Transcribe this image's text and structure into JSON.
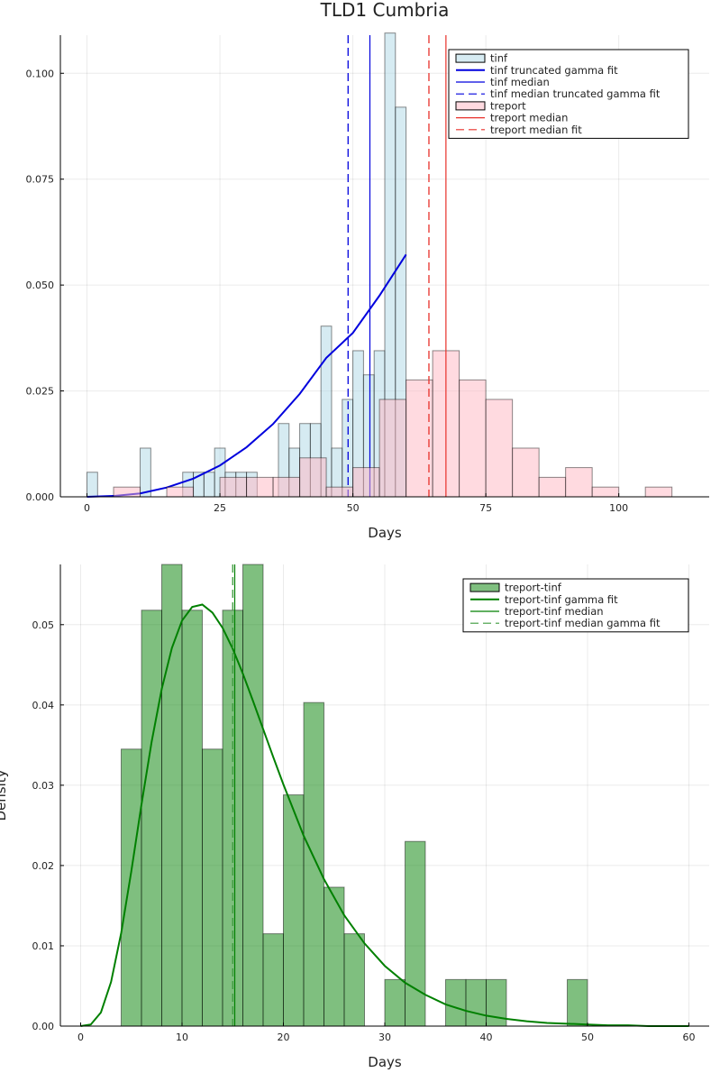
{
  "title": "TLD1 Cumbria",
  "chart_data": [
    {
      "type": "histogram",
      "xlabel": "Days",
      "ylabel": "",
      "xlim": [
        -5,
        117
      ],
      "ylim": [
        0,
        0.109
      ],
      "xticks": [
        0,
        25,
        50,
        75,
        100
      ],
      "xtick_labels": [
        "0",
        "25",
        "50",
        "75",
        "100"
      ],
      "yticks": [
        0,
        0.025,
        0.05,
        0.075,
        0.1
      ],
      "ytick_labels": [
        "0.000",
        "0.025",
        "0.050",
        "0.075",
        "0.100"
      ],
      "grid": true,
      "legend_position": "top-right",
      "series": [
        {
          "name": "tinf",
          "kind": "histogram",
          "color": "#add8e6",
          "bin_width": 2,
          "bins": [
            [
              0,
              0.0058
            ],
            [
              10,
              0.0115
            ],
            [
              18,
              0.0058
            ],
            [
              20,
              0.0058
            ],
            [
              22,
              0.0058
            ],
            [
              24,
              0.0115
            ],
            [
              26,
              0.0058
            ],
            [
              28,
              0.0058
            ],
            [
              30,
              0.0058
            ],
            [
              36,
              0.0173
            ],
            [
              38,
              0.0115
            ],
            [
              40,
              0.0173
            ],
            [
              42,
              0.0173
            ],
            [
              44,
              0.0403
            ],
            [
              46,
              0.0115
            ],
            [
              48,
              0.023
            ],
            [
              50,
              0.0345
            ],
            [
              52,
              0.0288
            ],
            [
              54,
              0.0345
            ],
            [
              56,
              0.1095
            ],
            [
              58,
              0.092
            ]
          ]
        },
        {
          "name": "tinf truncated gamma fit",
          "kind": "curve",
          "color": "#0000dd",
          "x": [
            0,
            5,
            10,
            15,
            20,
            25,
            30,
            35,
            40,
            45,
            50,
            55,
            60
          ],
          "y": [
            0,
            0.0002,
            0.0008,
            0.0022,
            0.0043,
            0.0074,
            0.0117,
            0.0172,
            0.0243,
            0.0328,
            0.0387,
            0.0475,
            0.0572
          ]
        },
        {
          "name": "tinf median",
          "kind": "vline",
          "color": "#0000dd",
          "x": 53.2,
          "dashed": false
        },
        {
          "name": "tinf median truncated gamma fit",
          "kind": "vline",
          "color": "#0000dd",
          "x": 49.1,
          "dashed": true
        },
        {
          "name": "treport",
          "kind": "histogram",
          "color": "#ffb6c1",
          "bin_width": 5,
          "bins": [
            [
              5,
              0.0023
            ],
            [
              15,
              0.0023
            ],
            [
              25,
              0.0046
            ],
            [
              30,
              0.0046
            ],
            [
              35,
              0.0046
            ],
            [
              40,
              0.0092
            ],
            [
              45,
              0.0023
            ],
            [
              50,
              0.0069
            ],
            [
              55,
              0.023
            ],
            [
              60,
              0.0276
            ],
            [
              65,
              0.0345
            ],
            [
              70,
              0.0276
            ],
            [
              75,
              0.023
            ],
            [
              80,
              0.0115
            ],
            [
              85,
              0.0046
            ],
            [
              90,
              0.0069
            ],
            [
              95,
              0.0023
            ],
            [
              105,
              0.0023
            ]
          ]
        },
        {
          "name": "treport median",
          "kind": "vline",
          "color": "#e8302a",
          "x": 67.5,
          "dashed": false
        },
        {
          "name": "treport median fit",
          "kind": "vline",
          "color": "#e8302a",
          "x": 64.3,
          "dashed": true
        }
      ]
    },
    {
      "type": "histogram",
      "xlabel": "Days",
      "ylabel": "Density",
      "xlim": [
        -2,
        62
      ],
      "ylim": [
        0,
        0.0575
      ],
      "xticks": [
        0,
        10,
        20,
        30,
        40,
        50,
        60
      ],
      "xtick_labels": [
        "0",
        "10",
        "20",
        "30",
        "40",
        "50",
        "60"
      ],
      "yticks": [
        0,
        0.01,
        0.02,
        0.03,
        0.04,
        0.05
      ],
      "ytick_labels": [
        "0.00",
        "0.01",
        "0.02",
        "0.03",
        "0.04",
        "0.05"
      ],
      "grid": true,
      "legend_position": "top-right",
      "series": [
        {
          "name": "treport-tinf",
          "kind": "histogram",
          "color": "#008000",
          "bin_width": 2,
          "bins": [
            [
              4,
              0.0345
            ],
            [
              6,
              0.0518
            ],
            [
              8,
              0.0575
            ],
            [
              10,
              0.0518
            ],
            [
              12,
              0.0345
            ],
            [
              14,
              0.0518
            ],
            [
              16,
              0.0575
            ],
            [
              18,
              0.0115
            ],
            [
              20,
              0.0288
            ],
            [
              22,
              0.0403
            ],
            [
              24,
              0.0173
            ],
            [
              26,
              0.0115
            ],
            [
              30,
              0.0058
            ],
            [
              32,
              0.023
            ],
            [
              36,
              0.0058
            ],
            [
              38,
              0.0058
            ],
            [
              40,
              0.0058
            ],
            [
              48,
              0.0058
            ]
          ]
        },
        {
          "name": "treport-tinf gamma fit",
          "kind": "curve",
          "color": "#008000",
          "x": [
            0,
            1,
            2,
            3,
            4,
            5,
            6,
            7,
            8,
            9,
            10,
            11,
            12,
            13,
            14,
            15,
            16,
            17,
            18,
            19,
            20,
            22,
            24,
            26,
            28,
            30,
            32,
            34,
            36,
            38,
            40,
            42,
            44,
            46,
            48,
            50,
            52,
            54,
            56,
            58,
            60
          ],
          "y": [
            0,
            0.0002,
            0.0017,
            0.0055,
            0.0116,
            0.0193,
            0.0276,
            0.0354,
            0.042,
            0.0471,
            0.0505,
            0.0522,
            0.0525,
            0.0515,
            0.0496,
            0.047,
            0.0439,
            0.0405,
            0.037,
            0.0335,
            0.0301,
            0.0237,
            0.0183,
            0.0138,
            0.0103,
            0.0075,
            0.0054,
            0.0039,
            0.0027,
            0.0019,
            0.0013,
            0.0009,
            0.0006,
            0.0004,
            0.0003,
            0.0002,
            0.0001,
            0.0001,
            0.0,
            0.0,
            0.0
          ]
        },
        {
          "name": "treport-tinf median",
          "kind": "vline",
          "color": "#008000",
          "x": 15.2,
          "dashed": false
        },
        {
          "name": "treport-tinf median gamma fit",
          "kind": "vline",
          "color": "#3c9a3c",
          "x": 15.0,
          "dashed": true
        }
      ]
    }
  ]
}
